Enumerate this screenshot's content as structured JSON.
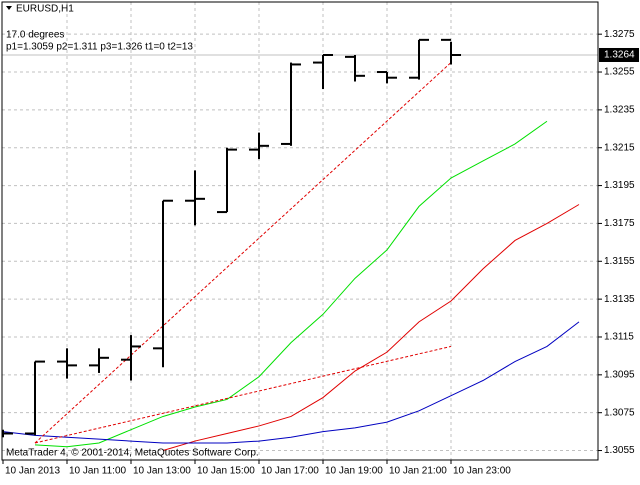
{
  "chart_data": {
    "type": "ohlc",
    "symbol": "EURUSD,H1",
    "annotations": [
      "17.0 degrees",
      "p1=1.3059  p2=1.311  p3=1.326  t1=0  t2=13"
    ],
    "footer": "MetaTrader 4, © 2001-2014, MetaQuotes Software Corp.",
    "categories": [
      "10 Jan 2013",
      null,
      "10 Jan 11:00",
      null,
      "10 Jan 13:00",
      null,
      "10 Jan 15:00",
      null,
      "10 Jan 17:00",
      null,
      "10 Jan 19:00",
      null,
      "10 Jan 21:00",
      null,
      "10 Jan 23:00",
      null,
      null,
      null,
      null
    ],
    "ohlc": {
      "color": "#000000",
      "open": [
        1.3065,
        1.3064,
        1.3102,
        1.31,
        1.3103,
        1.3109,
        1.3187,
        1.3181,
        1.3214,
        1.3217,
        1.326,
        1.3263,
        1.3255,
        1.3252,
        1.3272
      ],
      "high": [
        1.3066,
        1.3102,
        1.3109,
        1.3109,
        1.3116,
        1.3187,
        1.3203,
        1.3215,
        1.3223,
        1.326,
        1.3264,
        1.3264,
        1.3255,
        1.3272,
        1.3271
      ],
      "low": [
        1.3062,
        1.3063,
        1.3093,
        1.3096,
        1.3092,
        1.3099,
        1.3174,
        1.3181,
        1.3209,
        1.3216,
        1.3246,
        1.325,
        1.3249,
        1.3251,
        1.3259
      ],
      "close": [
        1.3064,
        1.3102,
        1.31,
        1.3104,
        1.311,
        1.3187,
        1.3188,
        1.3214,
        1.3216,
        1.3259,
        1.3264,
        1.3253,
        1.3252,
        1.3272,
        1.3264
      ]
    },
    "series": [
      {
        "color": "#00e000",
        "values": [
          null,
          1.3058,
          1.3057,
          1.3059,
          1.3066,
          1.3073,
          1.3078,
          1.3082,
          1.3094,
          1.3112,
          1.3127,
          1.3146,
          1.3161,
          1.3184,
          1.3199,
          1.3208,
          1.3217,
          1.3229,
          null
        ]
      },
      {
        "color": "#e00000",
        "values": [
          null,
          null,
          null,
          null,
          null,
          1.3055,
          1.306,
          1.3064,
          1.3068,
          1.3073,
          1.3083,
          1.3097,
          1.3107,
          1.3123,
          1.3134,
          1.3151,
          1.3166,
          1.3175,
          1.3185
        ]
      },
      {
        "color": "#0000c0",
        "values": [
          1.3065,
          1.3063,
          1.3062,
          1.3061,
          1.306,
          1.3059,
          1.3059,
          1.3059,
          1.306,
          1.3062,
          1.3065,
          1.3067,
          1.307,
          1.3076,
          1.3084,
          1.3092,
          1.3102,
          1.311,
          1.3123
        ]
      }
    ],
    "trendlines": [
      {
        "color": "#e00000",
        "x": [
          1,
          14
        ],
        "values": [
          1.3059,
          1.326
        ]
      },
      {
        "color": "#e00000",
        "x": [
          1,
          14
        ],
        "values": [
          1.3059,
          1.311
        ]
      }
    ],
    "current_price": 1.3264,
    "ylim": [
      1.305,
      1.3292
    ],
    "yticks": [
      1.3055,
      1.3075,
      1.3095,
      1.3115,
      1.3135,
      1.3155,
      1.3175,
      1.3195,
      1.3215,
      1.3235,
      1.3255,
      1.3275
    ],
    "grid": true
  }
}
